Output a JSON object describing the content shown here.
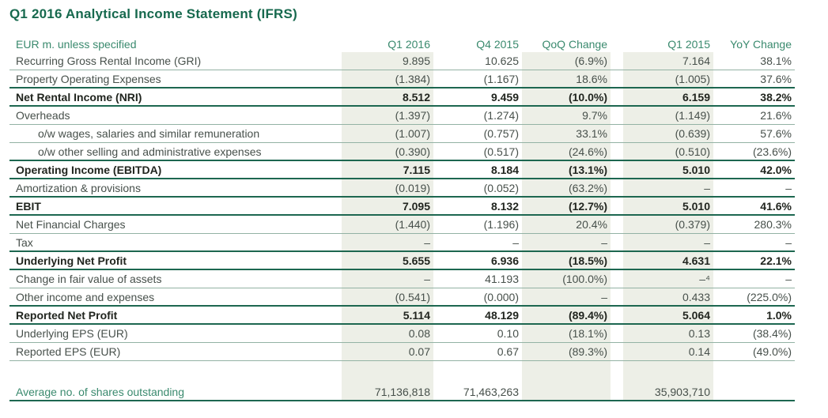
{
  "title": "Q1 2016 Analytical Income Statement (IFRS)",
  "table": {
    "unit_label": "EUR m. unless specified",
    "columns": [
      "Q1 2016",
      "Q4 2015",
      "QoQ Change",
      "Q1 2015",
      "YoY Change"
    ],
    "highlighted_columns": [
      "Q1 2016",
      "QoQ Change",
      "Q1 2015"
    ],
    "rows": [
      {
        "label": "Recurring Gross Rental Income (GRI)",
        "values": [
          "9.895",
          "10.625",
          "(6.9%)",
          "7.164",
          "38.1%"
        ],
        "bold": false,
        "indent": false
      },
      {
        "label": "Property Operating Expenses",
        "values": [
          "(1.384)",
          "(1.167)",
          "18.6%",
          "(1.005)",
          "37.6%"
        ],
        "bold": false,
        "indent": false
      },
      {
        "label": "Net Rental Income (NRI)",
        "values": [
          "8.512",
          "9.459",
          "(10.0%)",
          "6.159",
          "38.2%"
        ],
        "bold": true,
        "indent": false
      },
      {
        "label": "Overheads",
        "values": [
          "(1.397)",
          "(1.274)",
          "9.7%",
          "(1.149)",
          "21.6%"
        ],
        "bold": false,
        "indent": false
      },
      {
        "label": "o/w wages, salaries and similar remuneration",
        "values": [
          "(1.007)",
          "(0.757)",
          "33.1%",
          "(0.639)",
          "57.6%"
        ],
        "bold": false,
        "indent": true
      },
      {
        "label": "o/w other selling and administrative expenses",
        "values": [
          "(0.390)",
          "(0.517)",
          "(24.6%)",
          "(0.510)",
          "(23.6%)"
        ],
        "bold": false,
        "indent": true
      },
      {
        "label": "Operating Income (EBITDA)",
        "values": [
          "7.115",
          "8.184",
          "(13.1%)",
          "5.010",
          "42.0%"
        ],
        "bold": true,
        "indent": false
      },
      {
        "label": "Amortization & provisions",
        "values": [
          "(0.019)",
          "(0.052)",
          "(63.2%)",
          "–",
          "–"
        ],
        "bold": false,
        "indent": false
      },
      {
        "label": "EBIT",
        "values": [
          "7.095",
          "8.132",
          "(12.7%)",
          "5.010",
          "41.6%"
        ],
        "bold": true,
        "indent": false
      },
      {
        "label": "Net Financial Charges",
        "values": [
          "(1.440)",
          "(1.196)",
          "20.4%",
          "(0.379)",
          "280.3%"
        ],
        "bold": false,
        "indent": false
      },
      {
        "label": "Tax",
        "values": [
          "–",
          "–",
          "–",
          "–",
          "–"
        ],
        "bold": false,
        "indent": false
      },
      {
        "label": "Underlying Net Profit",
        "values": [
          "5.655",
          "6.936",
          "(18.5%)",
          "4.631",
          "22.1%"
        ],
        "bold": true,
        "indent": false
      },
      {
        "label": "Change in fair value of assets",
        "values": [
          "–",
          "41.193",
          "(100.0%)",
          "–⁴",
          "–"
        ],
        "bold": false,
        "indent": false
      },
      {
        "label": "Other income and expenses",
        "values": [
          "(0.541)",
          "(0.000)",
          "–",
          "0.433",
          "(225.0%)"
        ],
        "bold": false,
        "indent": false
      },
      {
        "label": "Reported Net Profit",
        "values": [
          "5.114",
          "48.129",
          "(89.4%)",
          "5.064",
          "1.0%"
        ],
        "bold": true,
        "indent": false
      },
      {
        "label": "Underlying EPS (EUR)",
        "values": [
          "0.08",
          "0.10",
          "(18.1%)",
          "0.13",
          "(38.4%)"
        ],
        "bold": false,
        "indent": false
      },
      {
        "label": "Reported EPS (EUR)",
        "values": [
          "0.07",
          "0.67",
          "(89.3%)",
          "0.14",
          "(49.0%)"
        ],
        "bold": false,
        "indent": false
      }
    ],
    "footer": {
      "label": "Average no. of shares outstanding",
      "values": [
        "71,136,818",
        "71,463,263",
        "",
        "35,903,710",
        ""
      ]
    }
  },
  "colors": {
    "title_green": "#17694e",
    "header_green": "#3a8a6e",
    "rule_thick": "#1d6750",
    "rule_thin": "#93b2a4",
    "band_background": "#edefe7",
    "body_text": "#47504b"
  }
}
